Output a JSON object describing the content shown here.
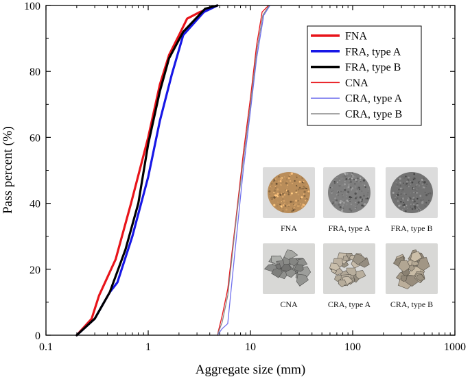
{
  "chart_data": {
    "type": "line",
    "title": "",
    "xlabel": "Aggregate size (mm)",
    "ylabel": "Pass percent (%)",
    "xscale": "log",
    "xlim": [
      0.1,
      1000
    ],
    "ylim": [
      0,
      100
    ],
    "xticks": [
      0.1,
      1,
      10,
      100,
      1000
    ],
    "xtick_labels": [
      "0.1",
      "1",
      "10",
      "100",
      "1000"
    ],
    "yticks": [
      0,
      20,
      40,
      60,
      80,
      100
    ],
    "ytick_labels": [
      "0",
      "20",
      "40",
      "60",
      "80",
      "100"
    ],
    "grid": false,
    "legend_position": "top-right",
    "series": [
      {
        "name": "FNA",
        "color": "#e8141a",
        "style": "thick",
        "points": [
          [
            0.2,
            0
          ],
          [
            0.28,
            5
          ],
          [
            0.33,
            12
          ],
          [
            0.48,
            23
          ],
          [
            0.68,
            40
          ],
          [
            1.0,
            60
          ],
          [
            1.3,
            76
          ],
          [
            1.6,
            85
          ],
          [
            2.0,
            91
          ],
          [
            2.4,
            96
          ],
          [
            3.2,
            98
          ],
          [
            4.75,
            100
          ]
        ]
      },
      {
        "name": "FRA, type A",
        "color": "#1717e6",
        "style": "thick",
        "points": [
          [
            0.2,
            0
          ],
          [
            0.3,
            5
          ],
          [
            0.42,
            13
          ],
          [
            0.5,
            16
          ],
          [
            0.7,
            30
          ],
          [
            1.0,
            48
          ],
          [
            1.3,
            65
          ],
          [
            1.7,
            79
          ],
          [
            2.2,
            91
          ],
          [
            3.5,
            98
          ],
          [
            4.75,
            100
          ]
        ]
      },
      {
        "name": "FRA, type B",
        "color": "#000000",
        "style": "thick",
        "points": [
          [
            0.2,
            0
          ],
          [
            0.3,
            5
          ],
          [
            0.42,
            13
          ],
          [
            0.6,
            26
          ],
          [
            0.8,
            40
          ],
          [
            1.0,
            58
          ],
          [
            1.3,
            74
          ],
          [
            1.6,
            84
          ],
          [
            2.2,
            92
          ],
          [
            3.6,
            99
          ],
          [
            4.75,
            100
          ]
        ]
      },
      {
        "name": "CNA",
        "color": "#e8141a",
        "style": "thin",
        "points": [
          [
            4.75,
            0
          ],
          [
            5.3,
            6
          ],
          [
            6.0,
            14
          ],
          [
            7.2,
            35
          ],
          [
            8.5,
            55
          ],
          [
            10.0,
            72
          ],
          [
            11.5,
            88
          ],
          [
            13.0,
            98
          ],
          [
            15.0,
            100
          ]
        ]
      },
      {
        "name": "CRA, type A",
        "color": "#7070ee",
        "style": "thin",
        "points": [
          [
            4.75,
            0
          ],
          [
            5.3,
            2
          ],
          [
            6.0,
            3.5
          ],
          [
            7.2,
            28
          ],
          [
            8.5,
            50
          ],
          [
            10.0,
            68
          ],
          [
            11.5,
            84
          ],
          [
            13.5,
            97
          ],
          [
            15.5,
            100
          ]
        ]
      },
      {
        "name": "CRA, type B",
        "color": "#888888",
        "style": "thin",
        "points": [
          [
            4.75,
            0
          ],
          [
            5.3,
            4
          ],
          [
            6.0,
            12
          ],
          [
            7.2,
            34
          ],
          [
            8.5,
            53
          ],
          [
            10.0,
            70
          ],
          [
            11.5,
            86
          ],
          [
            13.2,
            97
          ],
          [
            15.2,
            100
          ]
        ]
      }
    ]
  },
  "photos": [
    {
      "name": "FNA",
      "color": "#b98d5a",
      "grain": "fine"
    },
    {
      "name": "FRA, type A",
      "color": "#7e7e7e",
      "grain": "fine"
    },
    {
      "name": "FRA, type B",
      "color": "#727272",
      "grain": "fine"
    },
    {
      "name": "CNA",
      "color": "#8f908d",
      "grain": "coarse"
    },
    {
      "name": "CRA, type A",
      "color": "#a49b8c",
      "grain": "coarse"
    },
    {
      "name": "CRA, type B",
      "color": "#a59a88",
      "grain": "coarse"
    }
  ]
}
